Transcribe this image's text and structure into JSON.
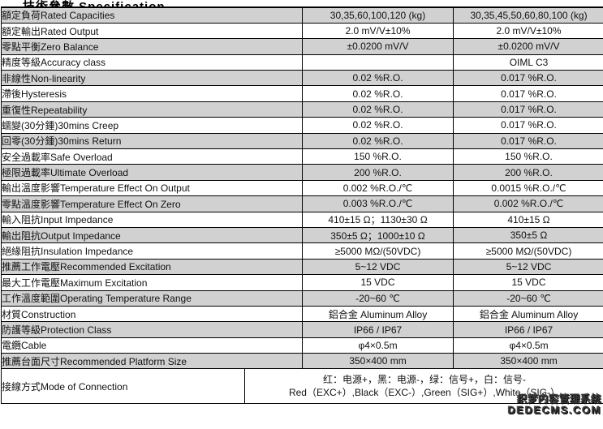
{
  "page": {
    "title": "技術參數 Specification"
  },
  "colors": {
    "row_gray": "#d1d1d1",
    "border": "#000000",
    "watermark": "#3b3b3b"
  },
  "table": {
    "rows": [
      {
        "label": "額定負荷Rated Capacities",
        "col1": "30,35,60,100,120 (kg)",
        "col2": "30,35,45,50,60,80,100 (kg)"
      },
      {
        "label": "額定輸出Rated Output",
        "col1": "2.0 mV/V±10%",
        "col2": "2.0 mV/V±10%"
      },
      {
        "label": "零點平衡Zero Balance",
        "col1": "±0.0200 mV/V",
        "col2": "±0.0200 mV/V"
      },
      {
        "label": "精度等級Accuracy class",
        "col1": "",
        "col2": "OIML C3"
      },
      {
        "label": "非線性Non-linearity",
        "col1": "0.02 %R.O.",
        "col2": "0.017 %R.O."
      },
      {
        "label": "滯後Hysteresis",
        "col1": "0.02 %R.O.",
        "col2": "0.017 %R.O."
      },
      {
        "label": "重復性Repeatability",
        "col1": "0.02 %R.O.",
        "col2": "0.017 %R.O."
      },
      {
        "label": "蠕變(30分鍾)30mins Creep",
        "col1": "0.02 %R.O.",
        "col2": "0.017 %R.O."
      },
      {
        "label": "回零(30分鍾)30mins Return",
        "col1": "0.02 %R.O.",
        "col2": "0.017 %R.O."
      },
      {
        "label": "安全過載率Safe Overload",
        "col1": "150 %R.O.",
        "col2": "150 %R.O."
      },
      {
        "label": "極限過載率Ultimate Overload",
        "col1": "200 %R.O.",
        "col2": "200 %R.O."
      },
      {
        "label": "輸出溫度影響Temperature Effect On Output",
        "col1": "0.002 %R.O./℃",
        "col2": "0.0015 %R.O./℃"
      },
      {
        "label": "零點溫度影響Temperature Effect On Zero",
        "col1": "0.003 %R.O./℃",
        "col2": "0.002 %R.O./℃"
      },
      {
        "label": "輸入阻抗Input Impedance",
        "col1": "410±15 Ω；1130±30 Ω",
        "col2": "410±15 Ω"
      },
      {
        "label": "輸出阻抗Output Impedance",
        "col1": "350±5 Ω；1000±10 Ω",
        "col2": "350±5 Ω"
      },
      {
        "label": "絕緣阻抗Insulation Impedance",
        "col1": "≥5000 MΩ/(50VDC)",
        "col2": "≥5000 MΩ/(50VDC)"
      },
      {
        "label": "推薦工作電壓Recommended Excitation",
        "col1": "5~12 VDC",
        "col2": "5~12 VDC"
      },
      {
        "label": "最大工作電壓Maximum Excitation",
        "col1": "15 VDC",
        "col2": "15 VDC"
      },
      {
        "label": "工作溫度範圍Operating Temperature Range",
        "col1": "-20~60 ℃",
        "col2": "-20~60 ℃"
      },
      {
        "label": "材質Construction",
        "col1": "鋁合金 Aluminum Alloy",
        "col2": "鋁合金 Aluminum Alloy"
      },
      {
        "label": "防護等級Protection Class",
        "col1": "IP66 / IP67",
        "col2": "IP66 / IP67"
      },
      {
        "label": "電纜Cable",
        "col1": "φ4×0.5m",
        "col2": "φ4×0.5m"
      },
      {
        "label": "推薦台面尺寸Recommended Platform Size",
        "col1": "350×400 mm",
        "col2": "350×400 mm"
      }
    ],
    "connection": {
      "label": "接線方式Mode of Connection",
      "line1": "红：电源+，黑：电源-，绿：信号+，白：信号-",
      "line2": "Red（EXC+）,Black（EXC-）,Green（SIG+）,White（SIG-）"
    }
  },
  "watermark": {
    "line1": "织梦内容管理系统",
    "line2": "DEDECMS.COM"
  }
}
